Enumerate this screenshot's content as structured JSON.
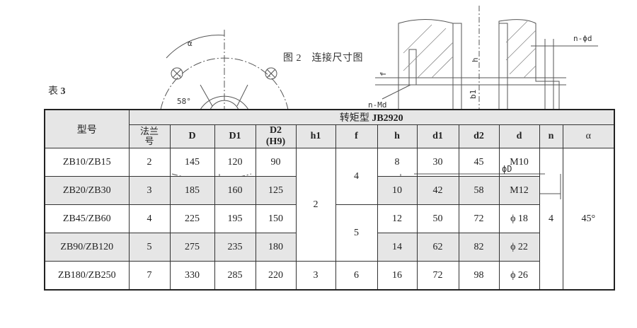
{
  "table_label_prefix": "表",
  "table_label_num": "3",
  "figure_caption": "图 2　连接尺寸图",
  "drawing_labels": {
    "alpha": "α",
    "angle": "58°",
    "n_md": "n-Md",
    "n_phid": "n-ϕd",
    "h": "h",
    "b1": "b1",
    "f": "f",
    "phiD": "ϕD"
  },
  "table": {
    "model_header": "型号",
    "group_header_prefix": "转矩型 ",
    "group_header_code": "JB2920",
    "columns": [
      "法兰号",
      "D",
      "D1",
      "D2 (H9)",
      "h1",
      "f",
      "h",
      "d1",
      "d2",
      "d",
      "n",
      "α"
    ],
    "rows": [
      {
        "model": "ZB10/ZB15",
        "flange": "2",
        "D": "145",
        "D1": "120",
        "D2": "90",
        "h": "8",
        "d1": "30",
        "d2": "45",
        "d": "M10"
      },
      {
        "model": "ZB20/ZB30",
        "flange": "3",
        "D": "185",
        "D1": "160",
        "D2": "125",
        "h": "10",
        "d1": "42",
        "d2": "58",
        "d": "M12"
      },
      {
        "model": "ZB45/ZB60",
        "flange": "4",
        "D": "225",
        "D1": "195",
        "D2": "150",
        "h": "12",
        "d1": "50",
        "d2": "72",
        "d": "ϕ 18"
      },
      {
        "model": "ZB90/ZB120",
        "flange": "5",
        "D": "275",
        "D1": "235",
        "D2": "180",
        "h": "14",
        "d1": "62",
        "d2": "82",
        "d": "ϕ 22"
      },
      {
        "model": "ZB180/ZB250",
        "flange": "7",
        "D": "330",
        "D1": "285",
        "D2": "220",
        "h": "16",
        "d1": "72",
        "d2": "98",
        "d": "ϕ 26"
      }
    ],
    "merged": {
      "h1_rows1_4": "2",
      "h1_row5": "3",
      "f_rows1_2": "4",
      "f_rows3_4": "5",
      "f_row5": "6",
      "n_all": "4",
      "alpha_all": "45°"
    }
  }
}
